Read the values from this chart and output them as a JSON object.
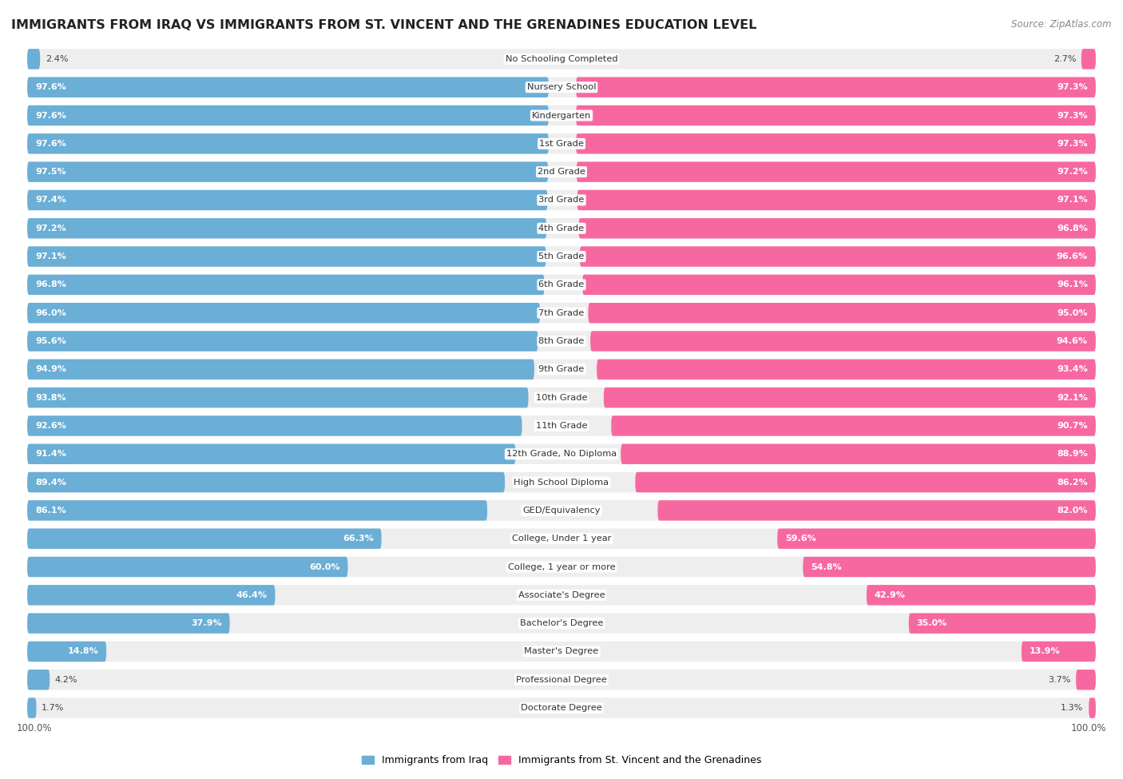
{
  "title": "IMMIGRANTS FROM IRAQ VS IMMIGRANTS FROM ST. VINCENT AND THE GRENADINES EDUCATION LEVEL",
  "source": "Source: ZipAtlas.com",
  "categories": [
    "No Schooling Completed",
    "Nursery School",
    "Kindergarten",
    "1st Grade",
    "2nd Grade",
    "3rd Grade",
    "4th Grade",
    "5th Grade",
    "6th Grade",
    "7th Grade",
    "8th Grade",
    "9th Grade",
    "10th Grade",
    "11th Grade",
    "12th Grade, No Diploma",
    "High School Diploma",
    "GED/Equivalency",
    "College, Under 1 year",
    "College, 1 year or more",
    "Associate's Degree",
    "Bachelor's Degree",
    "Master's Degree",
    "Professional Degree",
    "Doctorate Degree"
  ],
  "iraq_values": [
    2.4,
    97.6,
    97.6,
    97.6,
    97.5,
    97.4,
    97.2,
    97.1,
    96.8,
    96.0,
    95.6,
    94.9,
    93.8,
    92.6,
    91.4,
    89.4,
    86.1,
    66.3,
    60.0,
    46.4,
    37.9,
    14.8,
    4.2,
    1.7
  ],
  "svg_values": [
    2.7,
    97.3,
    97.3,
    97.3,
    97.2,
    97.1,
    96.8,
    96.6,
    96.1,
    95.0,
    94.6,
    93.4,
    92.1,
    90.7,
    88.9,
    86.2,
    82.0,
    59.6,
    54.8,
    42.9,
    35.0,
    13.9,
    3.7,
    1.3
  ],
  "iraq_color": "#6baed6",
  "svg_color": "#f768a1",
  "row_bg_color": "#eeeeee",
  "legend_iraq": "Immigrants from Iraq",
  "legend_svg": "Immigrants from St. Vincent and the Grenadines",
  "max_value": 100.0,
  "fig_bg": "#ffffff"
}
